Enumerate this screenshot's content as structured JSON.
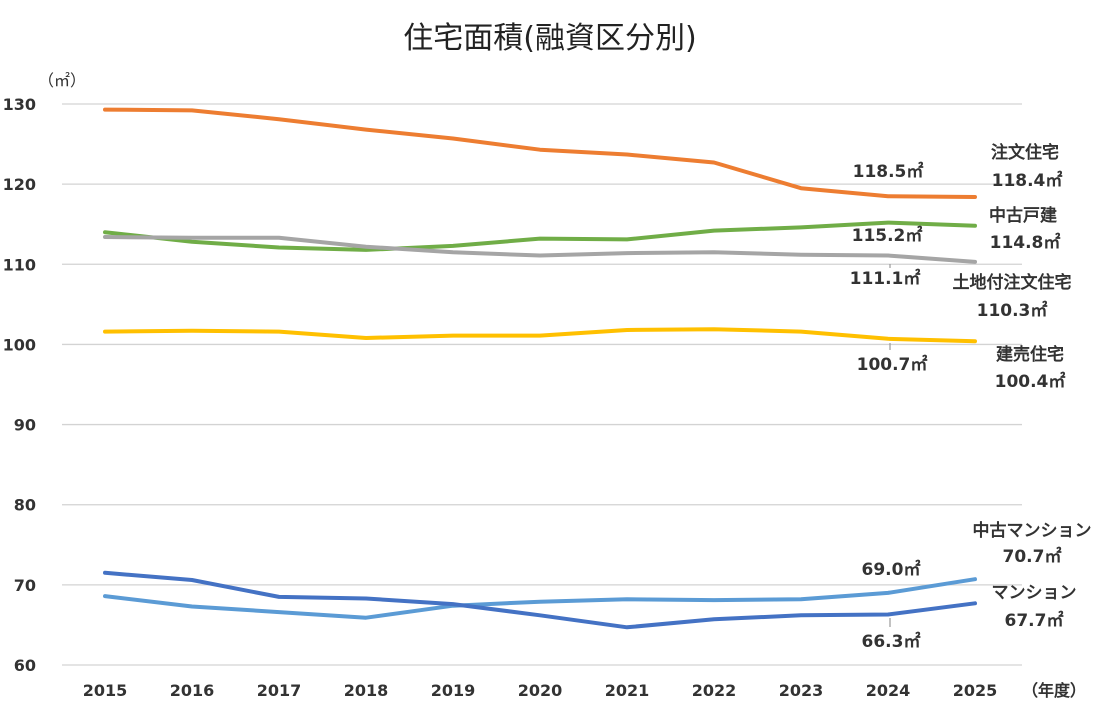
{
  "chart_data": {
    "type": "line",
    "title": "住宅面積(融資区分別)",
    "y_unit_label": "（㎡）",
    "x_unit_label": "（年度）",
    "x": [
      "2015",
      "2016",
      "2017",
      "2018",
      "2019",
      "2020",
      "2021",
      "2022",
      "2023",
      "2024",
      "2025"
    ],
    "ylim": [
      60,
      130
    ],
    "yticks": [
      60,
      70,
      80,
      90,
      100,
      110,
      120,
      130
    ],
    "grid": true,
    "series": [
      {
        "name": "注文住宅",
        "color": "#ed7d31",
        "values": [
          129.3,
          129.2,
          128.1,
          126.8,
          125.7,
          124.3,
          123.7,
          122.7,
          119.5,
          118.5,
          118.4
        ],
        "end_label": "118.4㎡",
        "point_label": "118.5㎡"
      },
      {
        "name": "中古戸建",
        "color": "#70ad47",
        "values": [
          114.0,
          112.8,
          112.1,
          111.8,
          112.3,
          113.2,
          113.1,
          114.2,
          114.6,
          115.2,
          114.8
        ],
        "end_label": "114.8㎡",
        "point_label": "115.2㎡"
      },
      {
        "name": "土地付注文住宅",
        "color": "#a5a5a5",
        "values": [
          113.4,
          113.3,
          113.3,
          112.2,
          111.5,
          111.1,
          111.4,
          111.5,
          111.2,
          111.1,
          110.3
        ],
        "end_label": "110.3㎡",
        "point_label": "111.1㎡"
      },
      {
        "name": "建売住宅",
        "color": "#ffc000",
        "values": [
          101.6,
          101.7,
          101.6,
          100.8,
          101.1,
          101.1,
          101.8,
          101.9,
          101.6,
          100.7,
          100.4
        ],
        "end_label": "100.4㎡",
        "point_label": "100.7㎡"
      },
      {
        "name": "中古マンション",
        "color": "#5b9bd5",
        "values": [
          68.6,
          67.3,
          66.6,
          65.9,
          67.4,
          67.9,
          68.2,
          68.1,
          68.2,
          69.0,
          70.7
        ],
        "end_label": "70.7㎡",
        "point_label": "69.0㎡"
      },
      {
        "name": "マンション",
        "color": "#4472c4",
        "values": [
          71.5,
          70.6,
          68.5,
          68.3,
          67.6,
          66.2,
          64.7,
          65.7,
          66.2,
          66.3,
          67.7
        ],
        "end_label": "67.7㎡",
        "point_label": "66.3㎡"
      }
    ]
  }
}
